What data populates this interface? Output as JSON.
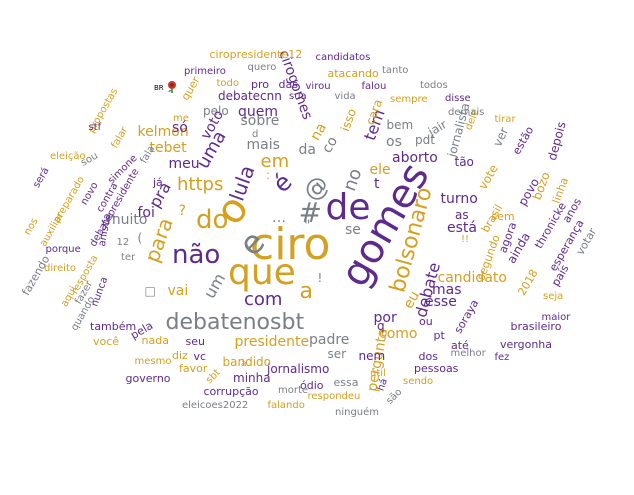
{
  "colors": {
    "gold": "#d4a020",
    "purple": "#5e2a8c",
    "gray": "#7a7f85"
  },
  "flag": {
    "icon": "rose-icon",
    "label": "BR",
    "color": "#c0392b"
  },
  "words": [
    {
      "t": "ciro",
      "c": "gold"
    },
    {
      "t": "gomes",
      "c": "purple"
    },
    {
      "t": "o",
      "c": "gold"
    },
    {
      "t": "que",
      "c": "gold"
    },
    {
      "t": "de",
      "c": "purple"
    },
    {
      "t": "e",
      "c": "gray"
    },
    {
      "t": "#",
      "c": "gray"
    },
    {
      "t": "@",
      "c": "gray"
    },
    {
      "t": "do",
      "c": "gold"
    },
    {
      "t": "é",
      "c": "purple"
    },
    {
      "t": "não",
      "c": "purple"
    },
    {
      "t": "debatenosbt",
      "c": "gray"
    },
    {
      "t": "a",
      "c": "gold"
    },
    {
      "t": "bolsonaro",
      "c": "gold"
    },
    {
      "t": "lula",
      "c": "purple"
    },
    {
      "t": "para",
      "c": "gold"
    },
    {
      "t": "com",
      "c": "purple"
    },
    {
      "t": "uma",
      "c": "purple"
    },
    {
      "t": "https",
      "c": "gold"
    },
    {
      "t": "no",
      "c": "gray"
    },
    {
      "t": "em",
      "c": "gold"
    },
    {
      "t": "presidente",
      "c": "gold"
    },
    {
      "t": "mais",
      "c": "gray"
    },
    {
      "t": "debate",
      "c": "purple"
    },
    {
      "t": "eu",
      "c": "gold"
    },
    {
      "t": "turno",
      "c": "purple"
    },
    {
      "t": "aborto",
      "c": "purple"
    },
    {
      "t": "ele",
      "c": "gold"
    },
    {
      "t": "um",
      "c": "gray"
    },
    {
      "t": "pra",
      "c": "purple"
    },
    {
      "t": "da",
      "c": "gray"
    },
    {
      "t": "co",
      "c": "gray"
    },
    {
      "t": "tem",
      "c": "purple"
    },
    {
      "t": "por",
      "c": "purple"
    },
    {
      "t": "sobre",
      "c": "gray"
    },
    {
      "t": "voto",
      "c": "purple"
    },
    {
      "t": "se",
      "c": "gray"
    },
    {
      "t": "está",
      "c": "purple"
    },
    {
      "t": "candidato",
      "c": "gold"
    },
    {
      "t": "padre",
      "c": "gray"
    },
    {
      "t": "mas",
      "c": "purple"
    },
    {
      "t": "esse",
      "c": "purple"
    },
    {
      "t": "como",
      "c": "gold"
    },
    {
      "t": "pergunta",
      "c": "gold"
    },
    {
      "t": "meu",
      "c": "purple"
    },
    {
      "t": "foi",
      "c": "purple"
    },
    {
      "t": "vai",
      "c": "gold"
    },
    {
      "t": "muito",
      "c": "gray"
    },
    {
      "t": "tebet",
      "c": "gold"
    },
    {
      "t": "kelmon",
      "c": "gold"
    },
    {
      "t": "só",
      "c": "purple"
    },
    {
      "t": "quem",
      "c": "purple"
    },
    {
      "t": "pelo",
      "c": "gray"
    },
    {
      "t": "debatecnn",
      "c": "purple"
    },
    {
      "t": "cirogomes",
      "c": "purple"
    },
    {
      "t": "na",
      "c": "gold"
    },
    {
      "t": "isso",
      "c": "gold"
    },
    {
      "t": "cara",
      "c": "gold"
    },
    {
      "t": "os",
      "c": "gray"
    },
    {
      "t": "bem",
      "c": "gray"
    },
    {
      "t": "pdt",
      "c": "gray"
    },
    {
      "t": "jair",
      "c": "gray"
    },
    {
      "t": "jornalista",
      "c": "gray"
    },
    {
      "t": "dele",
      "c": "gold"
    },
    {
      "t": "tão",
      "c": "purple"
    },
    {
      "t": "vote",
      "c": "gold"
    },
    {
      "t": "ver",
      "c": "gray"
    },
    {
      "t": "estão",
      "c": "purple"
    },
    {
      "t": "povo",
      "c": "purple"
    },
    {
      "t": "depois",
      "c": "purple"
    },
    {
      "t": "bozo",
      "c": "gold"
    },
    {
      "t": "linha",
      "c": "gold"
    },
    {
      "t": "thronicke",
      "c": "purple"
    },
    {
      "t": "anos",
      "c": "purple"
    },
    {
      "t": "esperança",
      "c": "purple"
    },
    {
      "t": "votar",
      "c": "gray"
    },
    {
      "t": "país",
      "c": "purple"
    },
    {
      "t": "seja",
      "c": "gold"
    },
    {
      "t": "ainda",
      "c": "purple"
    },
    {
      "t": "agora",
      "c": "purple"
    },
    {
      "t": "sem",
      "c": "gold"
    },
    {
      "t": "brasil",
      "c": "gold"
    },
    {
      "t": "as",
      "c": "purple"
    },
    {
      "t": "segundo",
      "c": "gold"
    },
    {
      "t": "2018",
      "c": "gold"
    },
    {
      "t": "maior",
      "c": "purple"
    },
    {
      "t": "brasileiro",
      "c": "purple"
    },
    {
      "t": "vergonha",
      "c": "purple"
    },
    {
      "t": "soraya",
      "c": "purple"
    },
    {
      "t": "ou",
      "c": "purple"
    },
    {
      "t": "pt",
      "c": "purple"
    },
    {
      "t": "até",
      "c": "purple"
    },
    {
      "t": "fez",
      "c": "purple"
    },
    {
      "t": "dos",
      "c": "purple"
    },
    {
      "t": "melhor",
      "c": "gray"
    },
    {
      "t": "pessoas",
      "c": "purple"
    },
    {
      "t": "sendo",
      "c": "gold"
    },
    {
      "t": "nem",
      "c": "purple"
    },
    {
      "t": "útil",
      "c": "gold"
    },
    {
      "t": "há",
      "c": "purple"
    },
    {
      "t": "são",
      "c": "gray"
    },
    {
      "t": "ser",
      "c": "gray"
    },
    {
      "t": "jornalismo",
      "c": "purple"
    },
    {
      "t": "ódio",
      "c": "purple"
    },
    {
      "t": "essa",
      "c": "gray"
    },
    {
      "t": "respondeu",
      "c": "gold"
    },
    {
      "t": "ninguém",
      "c": "gray"
    },
    {
      "t": "minha",
      "c": "purple"
    },
    {
      "t": "bandido",
      "c": "gold"
    },
    {
      "t": "morte",
      "c": "gray"
    },
    {
      "t": "corrupção",
      "c": "purple"
    },
    {
      "t": "falando",
      "c": "gold"
    },
    {
      "t": "eleicoes2022",
      "c": "gray"
    },
    {
      "t": "sbt",
      "c": "gold"
    },
    {
      "t": "favor",
      "c": "gold"
    },
    {
      "t": "governo",
      "c": "purple"
    },
    {
      "t": "diz",
      "c": "gold"
    },
    {
      "t": "vc",
      "c": "purple"
    },
    {
      "t": "mesmo",
      "c": "gold"
    },
    {
      "t": "nada",
      "c": "gold"
    },
    {
      "t": "seu",
      "c": "purple"
    },
    {
      "t": "você",
      "c": "gold"
    },
    {
      "t": "também",
      "c": "purple"
    },
    {
      "t": "pela",
      "c": "purple"
    },
    {
      "t": "aqui",
      "c": "gold"
    },
    {
      "t": "quando",
      "c": "gray"
    },
    {
      "t": "fazer",
      "c": "gray"
    },
    {
      "t": "fazendo",
      "c": "gray"
    },
    {
      "t": "direito",
      "c": "gold"
    },
    {
      "t": "nunca",
      "c": "purple"
    },
    {
      "t": "resposta",
      "c": "gold"
    },
    {
      "t": "porque",
      "c": "purple"
    },
    {
      "t": "nos",
      "c": "gold"
    },
    {
      "t": "auxiliar",
      "c": "gold"
    },
    {
      "t": "preparado",
      "c": "gold"
    },
    {
      "t": "será",
      "c": "purple"
    },
    {
      "t": "eleição",
      "c": "gold"
    },
    {
      "t": "sou",
      "c": "gray"
    },
    {
      "t": "novo",
      "c": "purple"
    },
    {
      "t": "contra",
      "c": "purple"
    },
    {
      "t": "anistia",
      "c": "purple"
    },
    {
      "t": "debatepresidente",
      "c": "purple"
    },
    {
      "t": "simone",
      "c": "purple"
    },
    {
      "t": "falar",
      "c": "gold"
    },
    {
      "t": "propostas",
      "c": "gold"
    },
    {
      "t": "stf",
      "c": "purple"
    },
    {
      "t": "fala",
      "c": "gray"
    },
    {
      "t": "12",
      "c": "gray"
    },
    {
      "t": "ter",
      "c": "gray"
    },
    {
      "t": "já",
      "c": "purple"
    },
    {
      "t": "quer",
      "c": "gold"
    },
    {
      "t": "me",
      "c": "gold"
    },
    {
      "t": "todo",
      "c": "gold"
    },
    {
      "t": "pro",
      "c": "purple"
    },
    {
      "t": "das",
      "c": "purple"
    },
    {
      "t": "primeiro",
      "c": "purple"
    },
    {
      "t": "quero",
      "c": "gray"
    },
    {
      "t": "ciropresidente12",
      "c": "gold"
    },
    {
      "t": "candidatos",
      "c": "purple"
    },
    {
      "t": "atacando",
      "c": "gold"
    },
    {
      "t": "tanto",
      "c": "gray"
    },
    {
      "t": "virou",
      "c": "purple"
    },
    {
      "t": "falou",
      "c": "purple"
    },
    {
      "t": "todos",
      "c": "gray"
    },
    {
      "t": "sua",
      "c": "purple"
    },
    {
      "t": "vida",
      "c": "gray"
    },
    {
      "t": "sempre",
      "c": "gold"
    },
    {
      "t": "disse",
      "c": "purple"
    },
    {
      "t": "demais",
      "c": "gray"
    },
    {
      "t": "tirar",
      "c": "gold"
    },
    {
      "t": "t",
      "c": "purple"
    },
    {
      "t": "q",
      "c": "purple"
    },
    {
      "t": "!!",
      "c": "gold"
    },
    {
      "t": "?",
      "c": "gold"
    },
    {
      "t": "…",
      "c": "gray"
    },
    {
      "t": ":",
      "c": "gold"
    },
    {
      "t": "(",
      "c": "gray"
    },
    {
      "t": "!",
      "c": "gray"
    },
    {
      "t": "\"",
      "c": "gray"
    },
    {
      "t": "d",
      "c": "gray"
    },
    {
      "t": "à",
      "c": "gold"
    },
    {
      "t": "□",
      "c": "gray"
    }
  ]
}
